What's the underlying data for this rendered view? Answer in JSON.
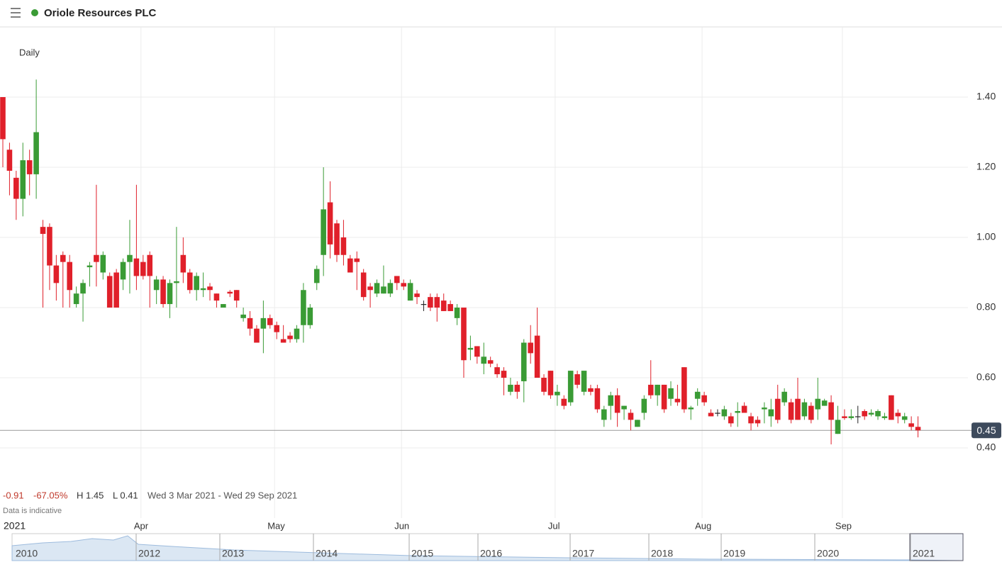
{
  "header": {
    "title": "Oriole Resources PLC"
  },
  "chart_data": {
    "type": "candlestick",
    "interval": "Daily",
    "change": -0.91,
    "change_pct": "-67.05%",
    "high_label": "H 1.45",
    "low_label": "L 0.41",
    "date_range": "Wed 3 Mar 2021 - Wed 29 Sep 2021",
    "note": "Data is indicative",
    "last": 0.45,
    "up_color": "#3a9b35",
    "down_color": "#e0202a",
    "flat_color": "#222222",
    "grid": true,
    "ylim": [
      0.2,
      1.6
    ],
    "yticks": [
      {
        "value": 0.4,
        "label": "0.40"
      },
      {
        "value": 0.6,
        "label": "0.60"
      },
      {
        "value": 0.8,
        "label": "0.80"
      },
      {
        "value": 1.0,
        "label": "1.00"
      },
      {
        "value": 1.2,
        "label": "1.20"
      },
      {
        "value": 1.4,
        "label": "1.40"
      }
    ],
    "categories": [
      "2021",
      null,
      null,
      null,
      null,
      null,
      null,
      null,
      null,
      null,
      null,
      null,
      null,
      null,
      null,
      null,
      null,
      null,
      null,
      null,
      null,
      "Apr",
      null,
      null,
      null,
      null,
      null,
      null,
      null,
      null,
      null,
      null,
      null,
      null,
      null,
      null,
      null,
      null,
      null,
      null,
      null,
      "May",
      null,
      null,
      null,
      null,
      null,
      null,
      null,
      null,
      null,
      null,
      null,
      null,
      null,
      null,
      null,
      null,
      null,
      null,
      "Jun",
      null,
      null,
      null,
      null,
      null,
      null,
      null,
      null,
      null,
      null,
      null,
      null,
      null,
      null,
      null,
      null,
      null,
      null,
      null,
      null,
      null,
      null,
      "Jul",
      null,
      null,
      null,
      null,
      null,
      null,
      null,
      null,
      null,
      null,
      null,
      null,
      null,
      null,
      null,
      null,
      null,
      null,
      null,
      null,
      null,
      "Aug",
      null,
      null,
      null,
      null,
      null,
      null,
      null,
      null,
      null,
      null,
      null,
      null,
      null,
      null,
      null,
      null,
      null,
      null,
      null,
      null,
      "Sep",
      null,
      null,
      null,
      null,
      null,
      null,
      null,
      null,
      null,
      null,
      null
    ],
    "open": [
      1.4,
      1.25,
      1.17,
      1.11,
      1.22,
      1.18,
      1.03,
      1.03,
      0.92,
      0.95,
      0.93,
      0.81,
      0.84,
      0.915,
      0.95,
      0.9,
      0.89,
      0.9,
      0.88,
      0.93,
      0.94,
      0.93,
      0.95,
      0.85,
      0.88,
      0.81,
      0.87,
      0.95,
      0.9,
      0.85,
      0.85,
      0.86,
      0.84,
      0.8,
      0.845,
      0.85,
      0.77,
      0.77,
      0.74,
      0.74,
      0.77,
      0.75,
      0.71,
      0.72,
      0.71,
      0.75,
      0.75,
      0.87,
      0.95,
      1.1,
      1.04,
      1.0,
      0.94,
      0.94,
      0.9,
      0.86,
      0.84,
      0.84,
      0.84,
      0.89,
      0.87,
      0.82,
      0.84,
      0.81,
      0.83,
      0.83,
      0.82,
      0.81,
      0.77,
      0.8,
      0.68,
      0.69,
      0.64,
      0.65,
      0.63,
      0.62,
      0.56,
      0.58,
      0.59,
      0.7,
      0.72,
      0.6,
      0.62,
      0.55,
      0.54,
      0.53,
      0.61,
      0.56,
      0.57,
      0.57,
      0.48,
      0.52,
      0.55,
      0.51,
      0.5,
      0.46,
      0.5,
      0.58,
      0.55,
      0.58,
      0.54,
      0.54,
      0.63,
      0.51,
      0.54,
      0.55,
      0.5,
      0.5,
      0.49,
      0.49,
      0.5,
      0.52,
      0.49,
      0.48,
      0.51,
      0.49,
      0.54,
      0.53,
      0.53,
      0.54,
      0.49,
      0.52,
      0.51,
      0.52,
      0.53,
      0.44,
      0.49,
      0.485,
      0.49,
      0.505,
      0.495,
      0.49,
      0.485,
      0.55,
      0.5,
      0.48,
      0.47,
      0.46
    ],
    "high": [
      1.4,
      1.27,
      1.19,
      1.27,
      1.25,
      1.45,
      1.05,
      1.04,
      0.95,
      0.96,
      0.95,
      0.86,
      0.88,
      0.93,
      1.15,
      0.96,
      0.9,
      0.91,
      0.94,
      1.05,
      1.15,
      0.95,
      0.96,
      0.89,
      0.89,
      0.88,
      1.03,
      1.0,
      0.91,
      0.9,
      0.9,
      0.87,
      0.84,
      0.81,
      0.85,
      0.85,
      0.8,
      0.79,
      0.75,
      0.82,
      0.78,
      0.76,
      0.75,
      0.73,
      0.75,
      0.87,
      0.81,
      0.92,
      1.2,
      1.16,
      1.05,
      1.05,
      0.95,
      0.96,
      0.91,
      0.87,
      0.88,
      0.92,
      0.88,
      0.89,
      0.88,
      0.88,
      0.85,
      0.82,
      0.84,
      0.84,
      0.84,
      0.82,
      0.81,
      0.8,
      0.72,
      0.69,
      0.7,
      0.66,
      0.64,
      0.63,
      0.6,
      0.59,
      0.71,
      0.75,
      0.8,
      0.61,
      0.62,
      0.58,
      0.55,
      0.62,
      0.62,
      0.62,
      0.58,
      0.58,
      0.52,
      0.56,
      0.57,
      0.52,
      0.51,
      0.48,
      0.55,
      0.65,
      0.58,
      0.58,
      0.59,
      0.58,
      0.63,
      0.52,
      0.57,
      0.56,
      0.51,
      0.51,
      0.52,
      0.5,
      0.53,
      0.53,
      0.5,
      0.49,
      0.53,
      0.54,
      0.58,
      0.57,
      0.54,
      0.6,
      0.54,
      0.53,
      0.6,
      0.54,
      0.55,
      0.52,
      0.51,
      0.51,
      0.52,
      0.51,
      0.51,
      0.51,
      0.5,
      0.55,
      0.51,
      0.5,
      0.49,
      0.49
    ],
    "low": [
      1.2,
      1.12,
      1.05,
      1.06,
      1.12,
      1.11,
      0.8,
      0.85,
      0.82,
      0.8,
      0.8,
      0.8,
      0.76,
      0.86,
      0.86,
      0.88,
      0.8,
      0.8,
      0.85,
      0.84,
      0.85,
      0.88,
      0.8,
      0.81,
      0.8,
      0.77,
      0.8,
      0.87,
      0.84,
      0.82,
      0.83,
      0.82,
      0.8,
      0.8,
      0.83,
      0.8,
      0.76,
      0.72,
      0.7,
      0.67,
      0.74,
      0.71,
      0.7,
      0.7,
      0.7,
      0.7,
      0.74,
      0.85,
      0.89,
      0.94,
      0.93,
      0.92,
      0.9,
      0.85,
      0.82,
      0.8,
      0.83,
      0.84,
      0.83,
      0.85,
      0.85,
      0.82,
      0.81,
      0.79,
      0.79,
      0.76,
      0.79,
      0.79,
      0.75,
      0.6,
      0.65,
      0.64,
      0.61,
      0.63,
      0.6,
      0.55,
      0.55,
      0.54,
      0.53,
      0.64,
      0.6,
      0.55,
      0.54,
      0.52,
      0.51,
      0.52,
      0.57,
      0.55,
      0.55,
      0.5,
      0.46,
      0.48,
      0.46,
      0.48,
      0.45,
      0.46,
      0.48,
      0.54,
      0.52,
      0.5,
      0.52,
      0.52,
      0.5,
      0.48,
      0.52,
      0.52,
      0.49,
      0.49,
      0.48,
      0.46,
      0.46,
      0.5,
      0.45,
      0.46,
      0.47,
      0.46,
      0.47,
      0.52,
      0.47,
      0.48,
      0.48,
      0.47,
      0.48,
      0.52,
      0.41,
      0.44,
      0.48,
      0.48,
      0.47,
      0.48,
      0.49,
      0.48,
      0.48,
      0.48,
      0.47,
      0.47,
      0.45,
      0.43
    ],
    "close": [
      1.28,
      1.19,
      1.11,
      1.22,
      1.18,
      1.3,
      1.01,
      0.92,
      0.87,
      0.93,
      0.85,
      0.84,
      0.87,
      0.92,
      0.93,
      0.95,
      0.8,
      0.8,
      0.93,
      0.95,
      0.89,
      0.89,
      0.89,
      0.88,
      0.81,
      0.87,
      0.875,
      0.9,
      0.85,
      0.89,
      0.855,
      0.85,
      0.82,
      0.81,
      0.84,
      0.82,
      0.78,
      0.74,
      0.7,
      0.77,
      0.75,
      0.73,
      0.7,
      0.71,
      0.74,
      0.85,
      0.8,
      0.91,
      1.08,
      0.98,
      0.95,
      0.95,
      0.9,
      0.93,
      0.83,
      0.85,
      0.87,
      0.86,
      0.87,
      0.87,
      0.86,
      0.87,
      0.83,
      0.81,
      0.8,
      0.8,
      0.79,
      0.79,
      0.8,
      0.65,
      0.685,
      0.66,
      0.66,
      0.64,
      0.61,
      0.6,
      0.58,
      0.56,
      0.7,
      0.67,
      0.6,
      0.56,
      0.55,
      0.56,
      0.52,
      0.62,
      0.58,
      0.62,
      0.56,
      0.51,
      0.51,
      0.55,
      0.5,
      0.52,
      0.48,
      0.48,
      0.54,
      0.55,
      0.58,
      0.51,
      0.57,
      0.53,
      0.51,
      0.515,
      0.56,
      0.53,
      0.49,
      0.5,
      0.51,
      0.47,
      0.505,
      0.5,
      0.47,
      0.47,
      0.515,
      0.51,
      0.48,
      0.56,
      0.48,
      0.48,
      0.53,
      0.48,
      0.54,
      0.535,
      0.48,
      0.48,
      0.485,
      0.49,
      0.49,
      0.49,
      0.5,
      0.505,
      0.49,
      0.48,
      0.49,
      0.49,
      0.46,
      0.45
    ],
    "navigator_years": [
      "2010",
      "2012",
      "2013",
      "2014",
      "2015",
      "2016",
      "2017",
      "2018",
      "2019",
      "2020",
      "2021"
    ]
  }
}
